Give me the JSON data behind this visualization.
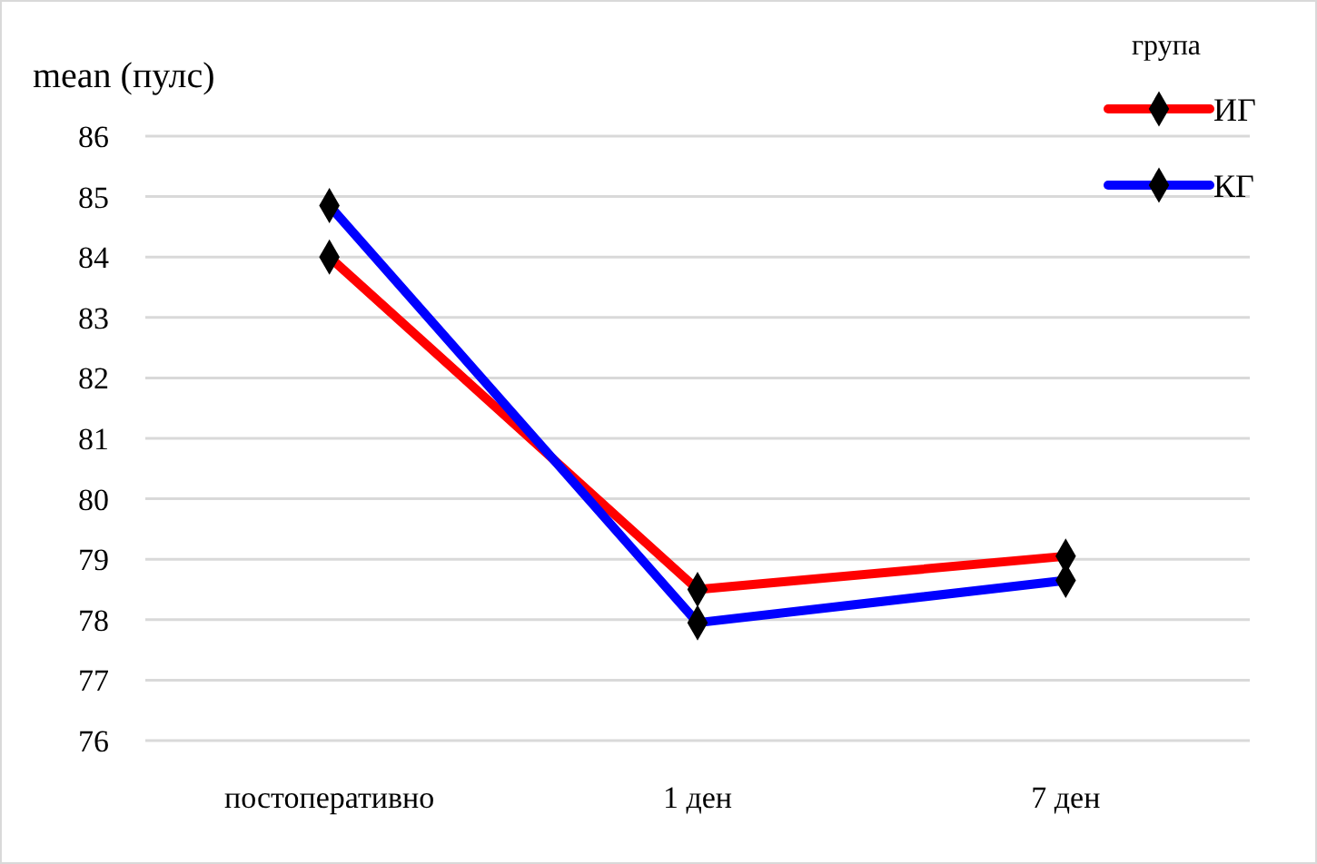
{
  "chart_data": {
    "type": "line",
    "ylabel": "mean (пулс)",
    "legend_title": "група",
    "categories": [
      "постоперативно",
      "1 ден",
      "7 ден"
    ],
    "series": [
      {
        "name": "ИГ",
        "color": "#ff0000",
        "values": [
          84.0,
          78.5,
          79.05
        ]
      },
      {
        "name": "КГ",
        "color": "#0000ff",
        "values": [
          84.85,
          77.95,
          78.65
        ]
      }
    ],
    "ylim": [
      76,
      86
    ],
    "yticks": [
      76,
      77,
      78,
      79,
      80,
      81,
      82,
      83,
      84,
      85,
      86
    ],
    "grid": "y",
    "legend": "top right",
    "marker": "diamond",
    "line_style": "solid"
  }
}
